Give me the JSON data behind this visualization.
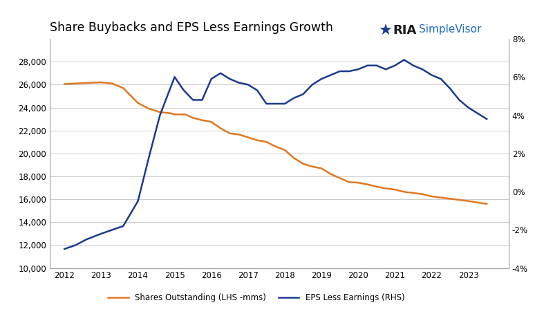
{
  "title": "Share Buybacks and EPS Less Earnings Growth",
  "background_color": "#ffffff",
  "grid_color": "#cccccc",
  "shares_color": "#E07820",
  "eps_color": "#1a3a8f",
  "shares_label": "Shares Outstanding (LHS -mms)",
  "eps_label": "EPS Less Earnings (RHS)",
  "lhs_ylim": [
    10000,
    30000
  ],
  "lhs_yticks": [
    10000,
    12000,
    14000,
    16000,
    18000,
    20000,
    22000,
    24000,
    26000,
    28000
  ],
  "rhs_ylim": [
    -0.04,
    0.08
  ],
  "rhs_yticks": [
    -0.04,
    -0.02,
    0.0,
    0.02,
    0.04,
    0.06,
    0.08
  ],
  "xlim": [
    2011.6,
    2024.1
  ],
  "shares_x": [
    2012.0,
    2012.3,
    2012.6,
    2013.0,
    2013.3,
    2013.6,
    2014.0,
    2014.3,
    2014.6,
    2014.9,
    2015.0,
    2015.3,
    2015.5,
    2015.75,
    2016.0,
    2016.25,
    2016.5,
    2016.75,
    2017.0,
    2017.25,
    2017.5,
    2017.75,
    2018.0,
    2018.25,
    2018.5,
    2018.75,
    2019.0,
    2019.25,
    2019.5,
    2019.75,
    2020.0,
    2020.25,
    2020.5,
    2020.75,
    2021.0,
    2021.25,
    2021.5,
    2021.75,
    2022.0,
    2022.25,
    2022.5,
    2022.75,
    2023.0,
    2023.25,
    2023.5
  ],
  "shares_y": [
    26050,
    26100,
    26150,
    26200,
    26100,
    25700,
    24400,
    23900,
    23600,
    23500,
    23400,
    23400,
    23100,
    22900,
    22750,
    22200,
    21750,
    21650,
    21400,
    21150,
    21000,
    20600,
    20300,
    19600,
    19100,
    18850,
    18700,
    18200,
    17850,
    17500,
    17450,
    17300,
    17100,
    16950,
    16850,
    16650,
    16550,
    16450,
    16250,
    16150,
    16050,
    15950,
    15850,
    15720,
    15600
  ],
  "eps_x": [
    2012.0,
    2012.3,
    2012.6,
    2013.0,
    2013.3,
    2013.6,
    2014.0,
    2014.3,
    2014.6,
    2014.9,
    2015.0,
    2015.25,
    2015.5,
    2015.75,
    2016.0,
    2016.25,
    2016.5,
    2016.75,
    2017.0,
    2017.25,
    2017.5,
    2017.75,
    2018.0,
    2018.25,
    2018.5,
    2018.75,
    2019.0,
    2019.25,
    2019.5,
    2019.75,
    2020.0,
    2020.25,
    2020.5,
    2020.75,
    2021.0,
    2021.25,
    2021.5,
    2021.75,
    2022.0,
    2022.25,
    2022.5,
    2022.75,
    2023.0,
    2023.25,
    2023.5
  ],
  "eps_y": [
    -0.03,
    -0.028,
    -0.025,
    -0.022,
    -0.02,
    -0.018,
    -0.005,
    0.018,
    0.04,
    0.055,
    0.06,
    0.053,
    0.048,
    0.048,
    0.059,
    0.062,
    0.059,
    0.057,
    0.056,
    0.053,
    0.046,
    0.046,
    0.046,
    0.049,
    0.051,
    0.056,
    0.059,
    0.061,
    0.063,
    0.063,
    0.064,
    0.066,
    0.066,
    0.064,
    0.066,
    0.069,
    0.066,
    0.064,
    0.061,
    0.059,
    0.054,
    0.048,
    0.044,
    0.041,
    0.038
  ]
}
